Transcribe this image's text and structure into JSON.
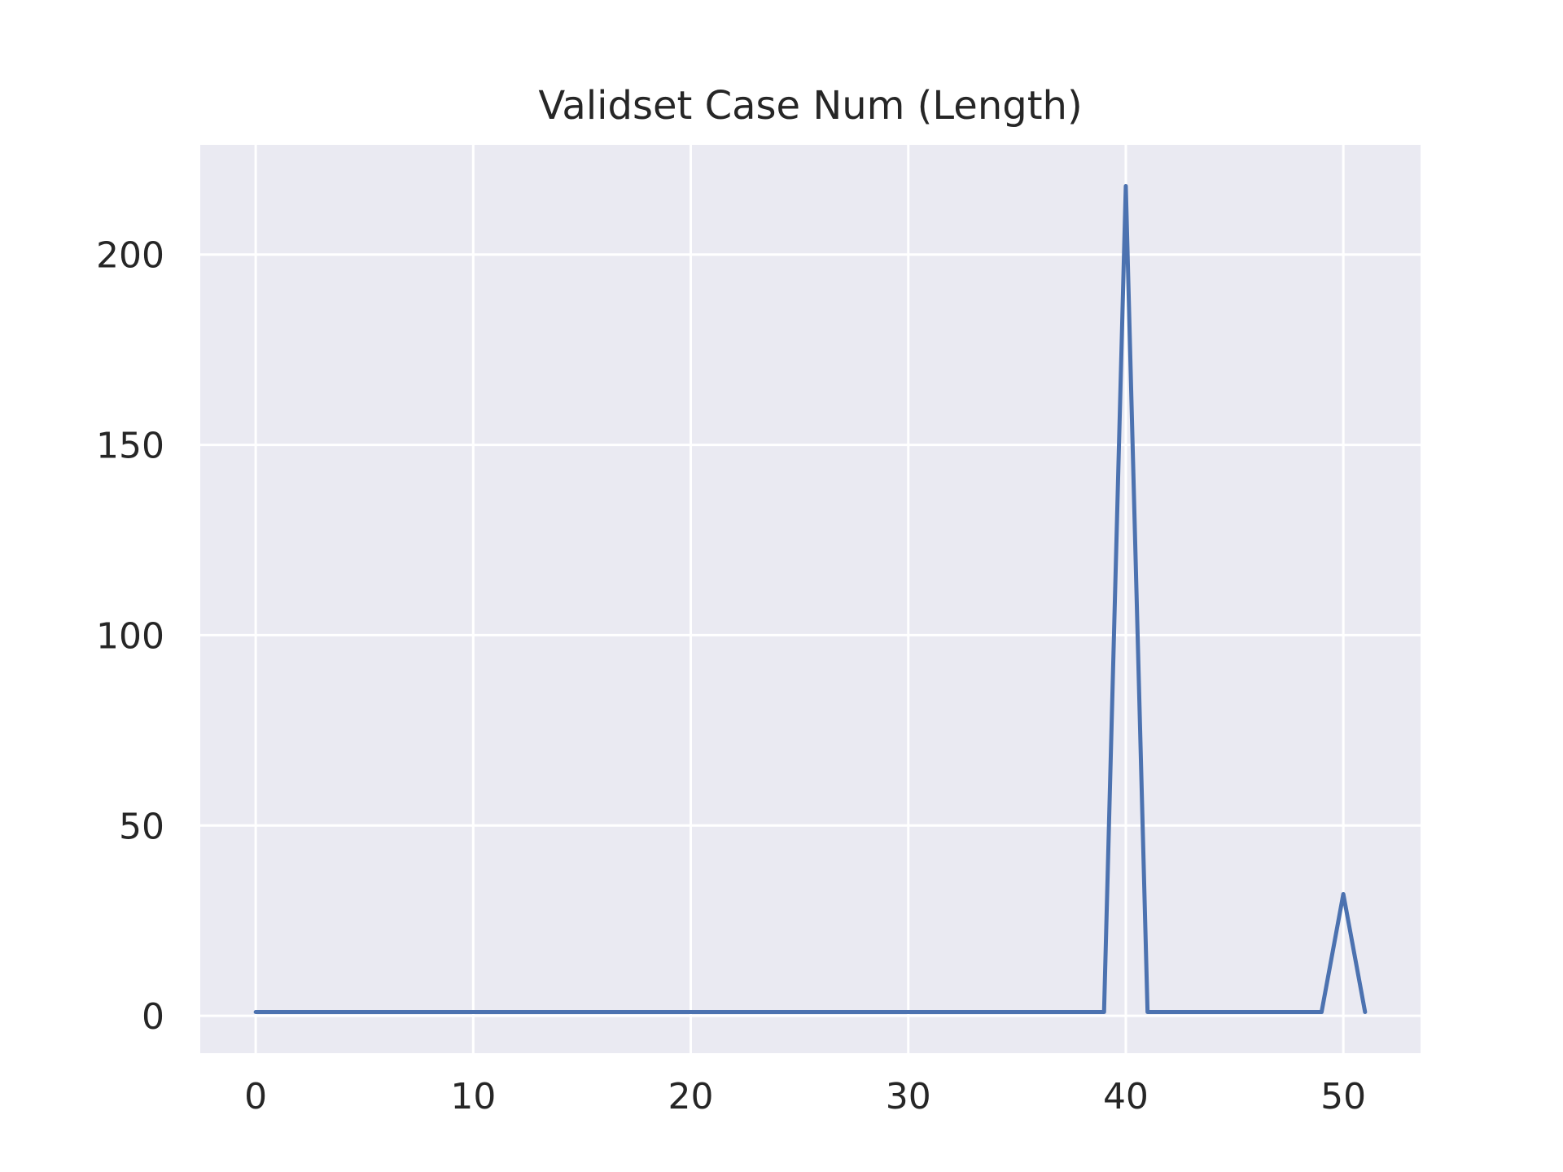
{
  "chart_data": {
    "type": "line",
    "title": "Validset Case Num (Length)",
    "xlabel": "",
    "ylabel": "",
    "xlim": [
      -2.55,
      53.55
    ],
    "ylim": [
      -9.8,
      228.8
    ],
    "xticks": [
      0,
      10,
      20,
      30,
      40,
      50
    ],
    "yticks": [
      0,
      50,
      100,
      150,
      200
    ],
    "grid": true,
    "background": "#eaeaf2",
    "grid_color": "#ffffff",
    "text_color": "#262626",
    "series": [
      {
        "color": "#4c72b0",
        "x": [
          0,
          1,
          2,
          3,
          4,
          5,
          6,
          7,
          8,
          9,
          10,
          11,
          12,
          13,
          14,
          15,
          16,
          17,
          18,
          19,
          20,
          21,
          22,
          23,
          24,
          25,
          26,
          27,
          28,
          29,
          30,
          31,
          32,
          33,
          34,
          35,
          36,
          37,
          38,
          39,
          40,
          41,
          42,
          43,
          44,
          45,
          46,
          47,
          48,
          49,
          50,
          51
        ],
        "y": [
          1,
          1,
          1,
          1,
          1,
          1,
          1,
          1,
          1,
          1,
          1,
          1,
          1,
          1,
          1,
          1,
          1,
          1,
          1,
          1,
          1,
          1,
          1,
          1,
          1,
          1,
          1,
          1,
          1,
          1,
          1,
          1,
          1,
          1,
          1,
          1,
          1,
          1,
          1,
          1,
          218,
          1,
          1,
          1,
          1,
          1,
          1,
          1,
          1,
          1,
          32,
          1
        ]
      }
    ]
  }
}
